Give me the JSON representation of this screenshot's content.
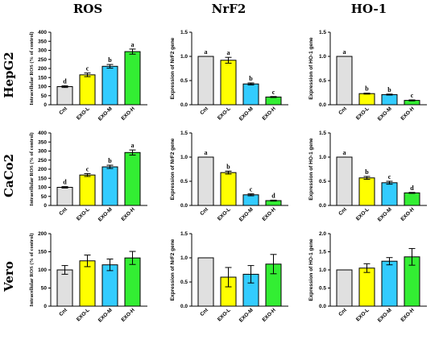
{
  "column_titles": [
    "ROS",
    "NrF2",
    "HO-1"
  ],
  "row_titles": [
    "HepG2",
    "CaCo2",
    "Vero"
  ],
  "colors": {
    "Cnt": "#e0e0e0",
    "EXO-L": "#ffff00",
    "EXO-M": "#33ccff",
    "EXO-H": "#33ee33"
  },
  "chart_data": [
    {
      "id": "hepg2-ros",
      "type": "bar",
      "ylabel": "Intracellular ROS (% of control)",
      "categories": [
        "Cnt",
        "EXO-L",
        "EXO-M",
        "EXO-H"
      ],
      "values": [
        100,
        165,
        212,
        293
      ],
      "errors": [
        5,
        10,
        10,
        14
      ],
      "labels": [
        "d",
        "c",
        "b",
        "a"
      ],
      "ylim": [
        0,
        400
      ],
      "yticks": [
        "0",
        "50",
        "100",
        "150",
        "200",
        "250",
        "300",
        "350",
        "400"
      ]
    },
    {
      "id": "hepg2-nrf2",
      "type": "bar",
      "ylabel": "Expression of NrF2 gene",
      "categories": [
        "Cnt",
        "EXO-L",
        "EXO-M",
        "EXO-H"
      ],
      "values": [
        1.0,
        0.92,
        0.43,
        0.16
      ],
      "errors": [
        0,
        0.06,
        0.02,
        0.01
      ],
      "labels": [
        "a",
        "a",
        "b",
        "c"
      ],
      "ylim": [
        0,
        1.5
      ],
      "yticks": [
        "0.0",
        "0.5",
        "1.0",
        "1.5"
      ]
    },
    {
      "id": "hepg2-ho1",
      "type": "bar",
      "ylabel": "Expression of HO-1 gene",
      "categories": [
        "Cnt",
        "EXO-L",
        "EXO-M",
        "EXO-H"
      ],
      "values": [
        1.0,
        0.23,
        0.21,
        0.09
      ],
      "errors": [
        0,
        0.01,
        0.01,
        0.01
      ],
      "labels": [
        "a",
        "b",
        "b",
        "c"
      ],
      "ylim": [
        0,
        1.5
      ],
      "yticks": [
        "0.0",
        "0.5",
        "1.0",
        "1.5"
      ]
    },
    {
      "id": "caco2-ros",
      "type": "bar",
      "ylabel": "Intracellular ROS (% of control)",
      "categories": [
        "Cnt",
        "EXO-L",
        "EXO-M",
        "EXO-H"
      ],
      "values": [
        100,
        168,
        213,
        292
      ],
      "errors": [
        4,
        8,
        9,
        14
      ],
      "labels": [
        "d",
        "c",
        "b",
        "a"
      ],
      "ylim": [
        0,
        400
      ],
      "yticks": [
        "0",
        "50",
        "100",
        "150",
        "200",
        "250",
        "300",
        "350",
        "400"
      ]
    },
    {
      "id": "caco2-nrf2",
      "type": "bar",
      "ylabel": "Expression of NrF2 gene",
      "categories": [
        "Cnt",
        "EXO-L",
        "EXO-M",
        "EXO-H"
      ],
      "values": [
        1.0,
        0.68,
        0.22,
        0.1
      ],
      "errors": [
        0,
        0.03,
        0.02,
        0.01
      ],
      "labels": [
        "a",
        "b",
        "c",
        "d"
      ],
      "ylim": [
        0,
        1.5
      ],
      "yticks": [
        "0.0",
        "0.5",
        "1.0",
        "1.5"
      ]
    },
    {
      "id": "caco2-ho1",
      "type": "bar",
      "ylabel": "Expression of HO-1 gene",
      "categories": [
        "Cnt",
        "EXO-L",
        "EXO-M",
        "EXO-H"
      ],
      "values": [
        1.0,
        0.57,
        0.47,
        0.26
      ],
      "errors": [
        0,
        0.03,
        0.03,
        0.01
      ],
      "labels": [
        "a",
        "b",
        "c",
        "d"
      ],
      "ylim": [
        0,
        1.5
      ],
      "yticks": [
        "0.0",
        "0.5",
        "1.0",
        "1.5"
      ]
    },
    {
      "id": "vero-ros",
      "type": "bar",
      "ylabel": "Intracellular ROS (% of control)",
      "categories": [
        "Cnt",
        "EXO-L",
        "EXO-M",
        "EXO-H"
      ],
      "values": [
        100,
        125,
        114,
        133
      ],
      "errors": [
        12,
        16,
        16,
        18
      ],
      "labels": [],
      "ylim": [
        0,
        200
      ],
      "yticks": [
        "0",
        "50",
        "100",
        "150",
        "200"
      ]
    },
    {
      "id": "vero-nrf2",
      "type": "bar",
      "ylabel": "Expression of NrF2 gene",
      "categories": [
        "Cnt",
        "EXO-L",
        "EXO-M",
        "EXO-H"
      ],
      "values": [
        1.0,
        0.6,
        0.66,
        0.87
      ],
      "errors": [
        0,
        0.2,
        0.18,
        0.2
      ],
      "labels": [],
      "ylim": [
        0,
        1.5
      ],
      "yticks": [
        "0.0",
        "0.5",
        "1.0",
        "1.5"
      ]
    },
    {
      "id": "vero-ho1",
      "type": "bar",
      "ylabel": "Expression of HO-1 gene",
      "categories": [
        "Cnt",
        "EXO-L",
        "EXO-M",
        "EXO-H"
      ],
      "values": [
        1.0,
        1.05,
        1.24,
        1.36
      ],
      "errors": [
        0,
        0.12,
        0.1,
        0.23
      ],
      "labels": [],
      "ylim": [
        0,
        2.0
      ],
      "yticks": [
        "0.0",
        "0.5",
        "1.0",
        "1.5",
        "2.0"
      ]
    }
  ]
}
